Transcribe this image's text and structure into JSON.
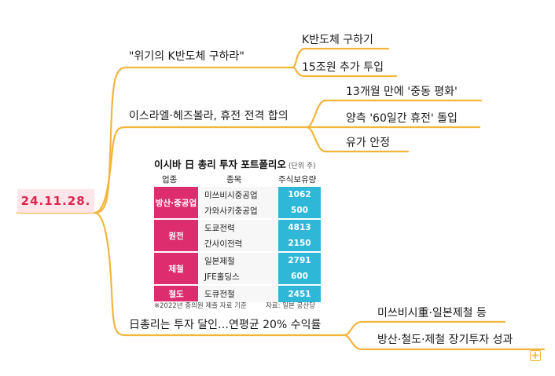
{
  "root": {
    "label": "24.11.28."
  },
  "branches": [
    {
      "label": "\"위기의 K반도체 구하라\"",
      "children": [
        "K반도체 구하기",
        "15조원 추가 투입"
      ]
    },
    {
      "label": "이스라엘·헤즈볼라, 휴전 전격 합의",
      "children": [
        "13개월 만에 '중동 평화'",
        "양측 '60일간 휴전' 돌입",
        "유가 안정"
      ]
    },
    {
      "label": "日총리는 투자 달인…연평균 20% 수익률",
      "children": [
        "미쓰비시重·일본제철 등",
        "방산·철도·제철 장기투자 성과"
      ]
    }
  ],
  "portfolio": {
    "title": "이시바 日 총리 투자 포트폴리오",
    "unit": "(단위 주)",
    "headers": [
      "업종",
      "종목",
      "주식보유량"
    ],
    "groups": [
      {
        "sector": "방산·중공업",
        "items": [
          {
            "company": "미쓰비시중공업",
            "shares": "1062"
          },
          {
            "company": "가와사키중공업",
            "shares": "500"
          }
        ]
      },
      {
        "sector": "원전",
        "items": [
          {
            "company": "도쿄전력",
            "shares": "4813"
          },
          {
            "company": "간사이전력",
            "shares": "2150"
          }
        ]
      },
      {
        "sector": "제철",
        "items": [
          {
            "company": "일본제철",
            "shares": "2791"
          },
          {
            "company": "JFE홀딩스",
            "shares": "600"
          }
        ]
      },
      {
        "sector": "철도",
        "items": [
          {
            "company": "도큐전철",
            "shares": "2451"
          }
        ]
      }
    ],
    "footnote_left": "※2022년 중의원 제출 자료 기준",
    "footnote_right": "자료: 일본 공산당"
  },
  "colors": {
    "connector": "#f2b53a",
    "root_bg": "#fde5ea",
    "root_text": "#e0244f",
    "sector_bg": "#dd2d6e",
    "shares_bg": "#2fb7d8"
  },
  "icons": {
    "expand": "plus-icon"
  },
  "expand_symbol": "+"
}
